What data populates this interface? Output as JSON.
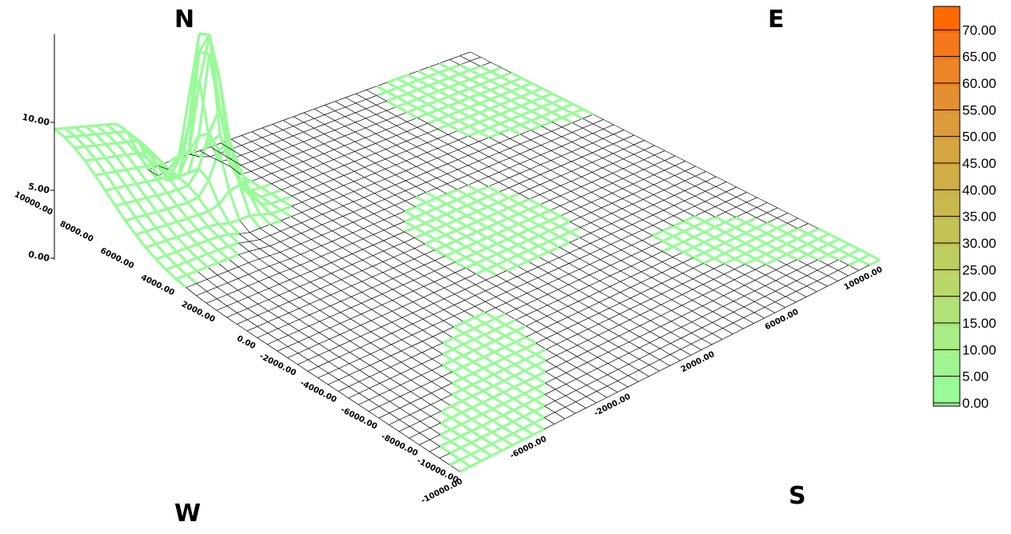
{
  "compass": {
    "north": "N",
    "east": "E",
    "south": "S",
    "west": "W"
  },
  "chart_data": {
    "type": "surface",
    "x_axis": {
      "range": [
        -10000,
        10000
      ],
      "ticks": [
        "-10000.00",
        "-6000.00",
        "-2000.00",
        "2000.00",
        "6000.00",
        "10000.00"
      ]
    },
    "y_axis": {
      "range": [
        -10000,
        10000
      ],
      "ticks": [
        "10000.00",
        "8000.00",
        "6000.00",
        "4000.00",
        "2000.00",
        "0.00",
        "-2000.00",
        "-4000.00",
        "-6000.00",
        "-8000.00",
        "-10000.00"
      ]
    },
    "z_axis": {
      "range": [
        0,
        12
      ],
      "ticks": [
        "0.00",
        "5.00",
        "10.00"
      ]
    },
    "colorbar": {
      "ticks": [
        "70.00",
        "65.00",
        "60.00",
        "55.00",
        "50.00",
        "45.00",
        "40.00",
        "35.00",
        "30.00",
        "25.00",
        "20.00",
        "15.00",
        "10.00",
        "5.00",
        "0.00"
      ],
      "colors": [
        "#ff6a00",
        "#f5781a",
        "#ec8525",
        "#e49030",
        "#dc9b3a",
        "#d5a640",
        "#ceae45",
        "#c8b84d",
        "#c2c255",
        "#bdcd5f",
        "#b8d86a",
        "#b0e278",
        "#a7ec86",
        "#a0f593",
        "#98fb98"
      ]
    },
    "surface": {
      "grid_size": 40,
      "baseline": 0,
      "features": [
        {
          "type": "peak",
          "x": -4200,
          "y": 8600,
          "z": 11.5,
          "sigma": 420
        },
        {
          "type": "peak",
          "x": -4800,
          "y": 7800,
          "z": 11.0,
          "sigma": 420
        },
        {
          "type": "peak",
          "x": -5200,
          "y": 6800,
          "z": 6.0,
          "sigma": 600
        },
        {
          "type": "ridge",
          "edge": "y_max",
          "z": 5.5,
          "width": 2600,
          "x_from": -10000,
          "x_to": -5500
        }
      ],
      "mesh_color": "#98fb98",
      "grid_color": "#000000"
    }
  }
}
